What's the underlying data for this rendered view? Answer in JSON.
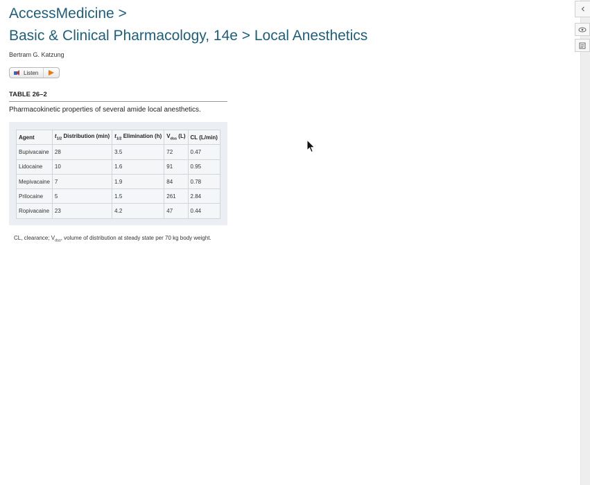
{
  "breadcrumb": {
    "line1": "AccessMedicine >",
    "line2": "Basic & Clinical Pharmacology, 14e > Local Anesthetics"
  },
  "author": "Bertram G. Katzung",
  "listen": {
    "label": "Listen"
  },
  "table": {
    "label": "TABLE 26–2",
    "caption": "Pharmacokinetic properties of several amide local anesthetics.",
    "headers": {
      "agent": "Agent",
      "dist_t": "t",
      "dist_sub": "1/2",
      "dist_rest": " Distribution (min)",
      "elim_t": "t",
      "elim_sub": "1/2",
      "elim_rest": " Elimination (h)",
      "vdss_v": "V",
      "vdss_sub": "dss",
      "vdss_rest": " (L)",
      "cl": "CL (L/min)"
    },
    "rows": [
      {
        "agent": "Bupivacaine",
        "dist": "28",
        "elim": "3.5",
        "vdss": "72",
        "cl": "0.47"
      },
      {
        "agent": "Lidocaine",
        "dist": "10",
        "elim": "1.6",
        "vdss": "91",
        "cl": "0.95"
      },
      {
        "agent": "Mepivacaine",
        "dist": "7",
        "elim": "1.9",
        "vdss": "84",
        "cl": "0.78"
      },
      {
        "agent": "Prilocaine",
        "dist": "5",
        "elim": "1.5",
        "vdss": "261",
        "cl": "2.84"
      },
      {
        "agent": "Ropivacaine",
        "dist": "23",
        "elim": "4.2",
        "vdss": "47",
        "cl": "0.44"
      }
    ],
    "footnote": {
      "pre": "CL, clearance; V",
      "sub": "dss",
      "post": ", volume of distribution at steady state per 70 kg body weight."
    }
  },
  "side_panel": {
    "collapse_icon": "chevron-left-icon",
    "eye_icon": "eye-icon",
    "notes_icon": "notes-icon"
  }
}
